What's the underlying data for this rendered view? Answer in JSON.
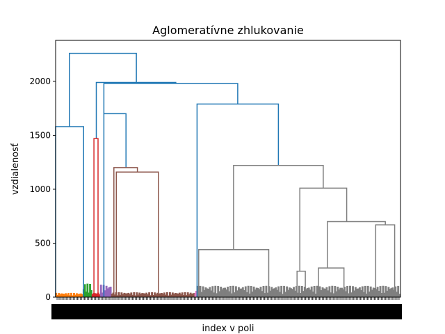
{
  "chart_data": {
    "type": "dendrogram",
    "title": "Aglomeratívne zhlukovanie",
    "xlabel": "index v poli",
    "ylabel": "vzdialenosť",
    "ylim": [
      0,
      2380
    ],
    "yticks": [
      0,
      500,
      1000,
      1500,
      2000
    ],
    "x_range": [
      0,
      1000
    ],
    "grid": false,
    "legend": "none",
    "colors": {
      "blue": "#1f77b4",
      "orange": "#ff7f0e",
      "green": "#2ca02c",
      "red": "#d62728",
      "purple": "#9467bd",
      "brown": "#8c564b",
      "gray": "#7f7f7f",
      "pink": "#e377c2"
    },
    "links": [
      {
        "color": "#1f77b4",
        "x": [
          40,
          40,
          234,
          234
        ],
        "y": [
          1580,
          2260,
          2260,
          1990
        ]
      },
      {
        "color": "#1f77b4",
        "x": [
          0,
          0,
          81,
          81
        ],
        "y": [
          0,
          1580,
          1580,
          0
        ]
      },
      {
        "color": "#1f77b4",
        "x": [
          118,
          118,
          350,
          350
        ],
        "y": [
          1470,
          1990,
          1990,
          1990
        ]
      },
      {
        "color": "#1f77b4",
        "x": [
          140,
          140,
          528,
          528
        ],
        "y": [
          1700,
          1980,
          1980,
          1790
        ]
      },
      {
        "color": "#1f77b4",
        "x": [
          140,
          140,
          204,
          204
        ],
        "y": [
          0,
          1700,
          1700,
          1200
        ]
      },
      {
        "color": "#1f77b4",
        "x": [
          410,
          410,
          646,
          646
        ],
        "y": [
          0,
          1790,
          1790,
          1220
        ]
      },
      {
        "color": "#d62728",
        "x": [
          111,
          111,
          123,
          123
        ],
        "y": [
          0,
          1470,
          1470,
          0
        ]
      },
      {
        "color": "#8c564b",
        "x": [
          169,
          169,
          237,
          237
        ],
        "y": [
          20,
          1200,
          1200,
          1160
        ]
      },
      {
        "color": "#8c564b",
        "x": [
          176,
          176,
          298,
          298
        ],
        "y": [
          20,
          1160,
          1160,
          20
        ]
      },
      {
        "color": "#7f7f7f",
        "x": [
          516,
          516,
          776,
          776
        ],
        "y": [
          440,
          1220,
          1220,
          1010
        ]
      },
      {
        "color": "#7f7f7f",
        "x": [
          415,
          415,
          618,
          618
        ],
        "y": [
          20,
          440,
          440,
          20
        ]
      },
      {
        "color": "#7f7f7f",
        "x": [
          708,
          708,
          844,
          844
        ],
        "y": [
          240,
          1010,
          1010,
          700
        ]
      },
      {
        "color": "#7f7f7f",
        "x": [
          788,
          788,
          956,
          956
        ],
        "y": [
          270,
          700,
          700,
          670
        ]
      },
      {
        "color": "#7f7f7f",
        "x": [
          928,
          928,
          983,
          983
        ],
        "y": [
          20,
          670,
          670,
          20
        ]
      },
      {
        "color": "#7f7f7f",
        "x": [
          700,
          700,
          724,
          724
        ],
        "y": [
          20,
          240,
          240,
          20
        ]
      },
      {
        "color": "#7f7f7f",
        "x": [
          762,
          762,
          836,
          836
        ],
        "y": [
          20,
          270,
          270,
          20
        ]
      }
    ],
    "leaf_clusters": [
      {
        "color": "#ff7f0e",
        "x_start": 0,
        "x_end": 80,
        "height": 35
      },
      {
        "color": "#2ca02c",
        "x_start": 80,
        "x_end": 106,
        "height": 120
      },
      {
        "color": "#d62728",
        "x_start": 106,
        "x_end": 130,
        "height": 40
      },
      {
        "color": "#9467bd",
        "x_start": 130,
        "x_end": 162,
        "height": 110
      },
      {
        "color": "#8c564b",
        "x_start": 162,
        "x_end": 410,
        "height": 40
      },
      {
        "color": "#e377c2",
        "x_start": 404,
        "x_end": 412,
        "height": 60
      },
      {
        "color": "#7f7f7f",
        "x_start": 410,
        "x_end": 1000,
        "height": 100
      }
    ]
  }
}
